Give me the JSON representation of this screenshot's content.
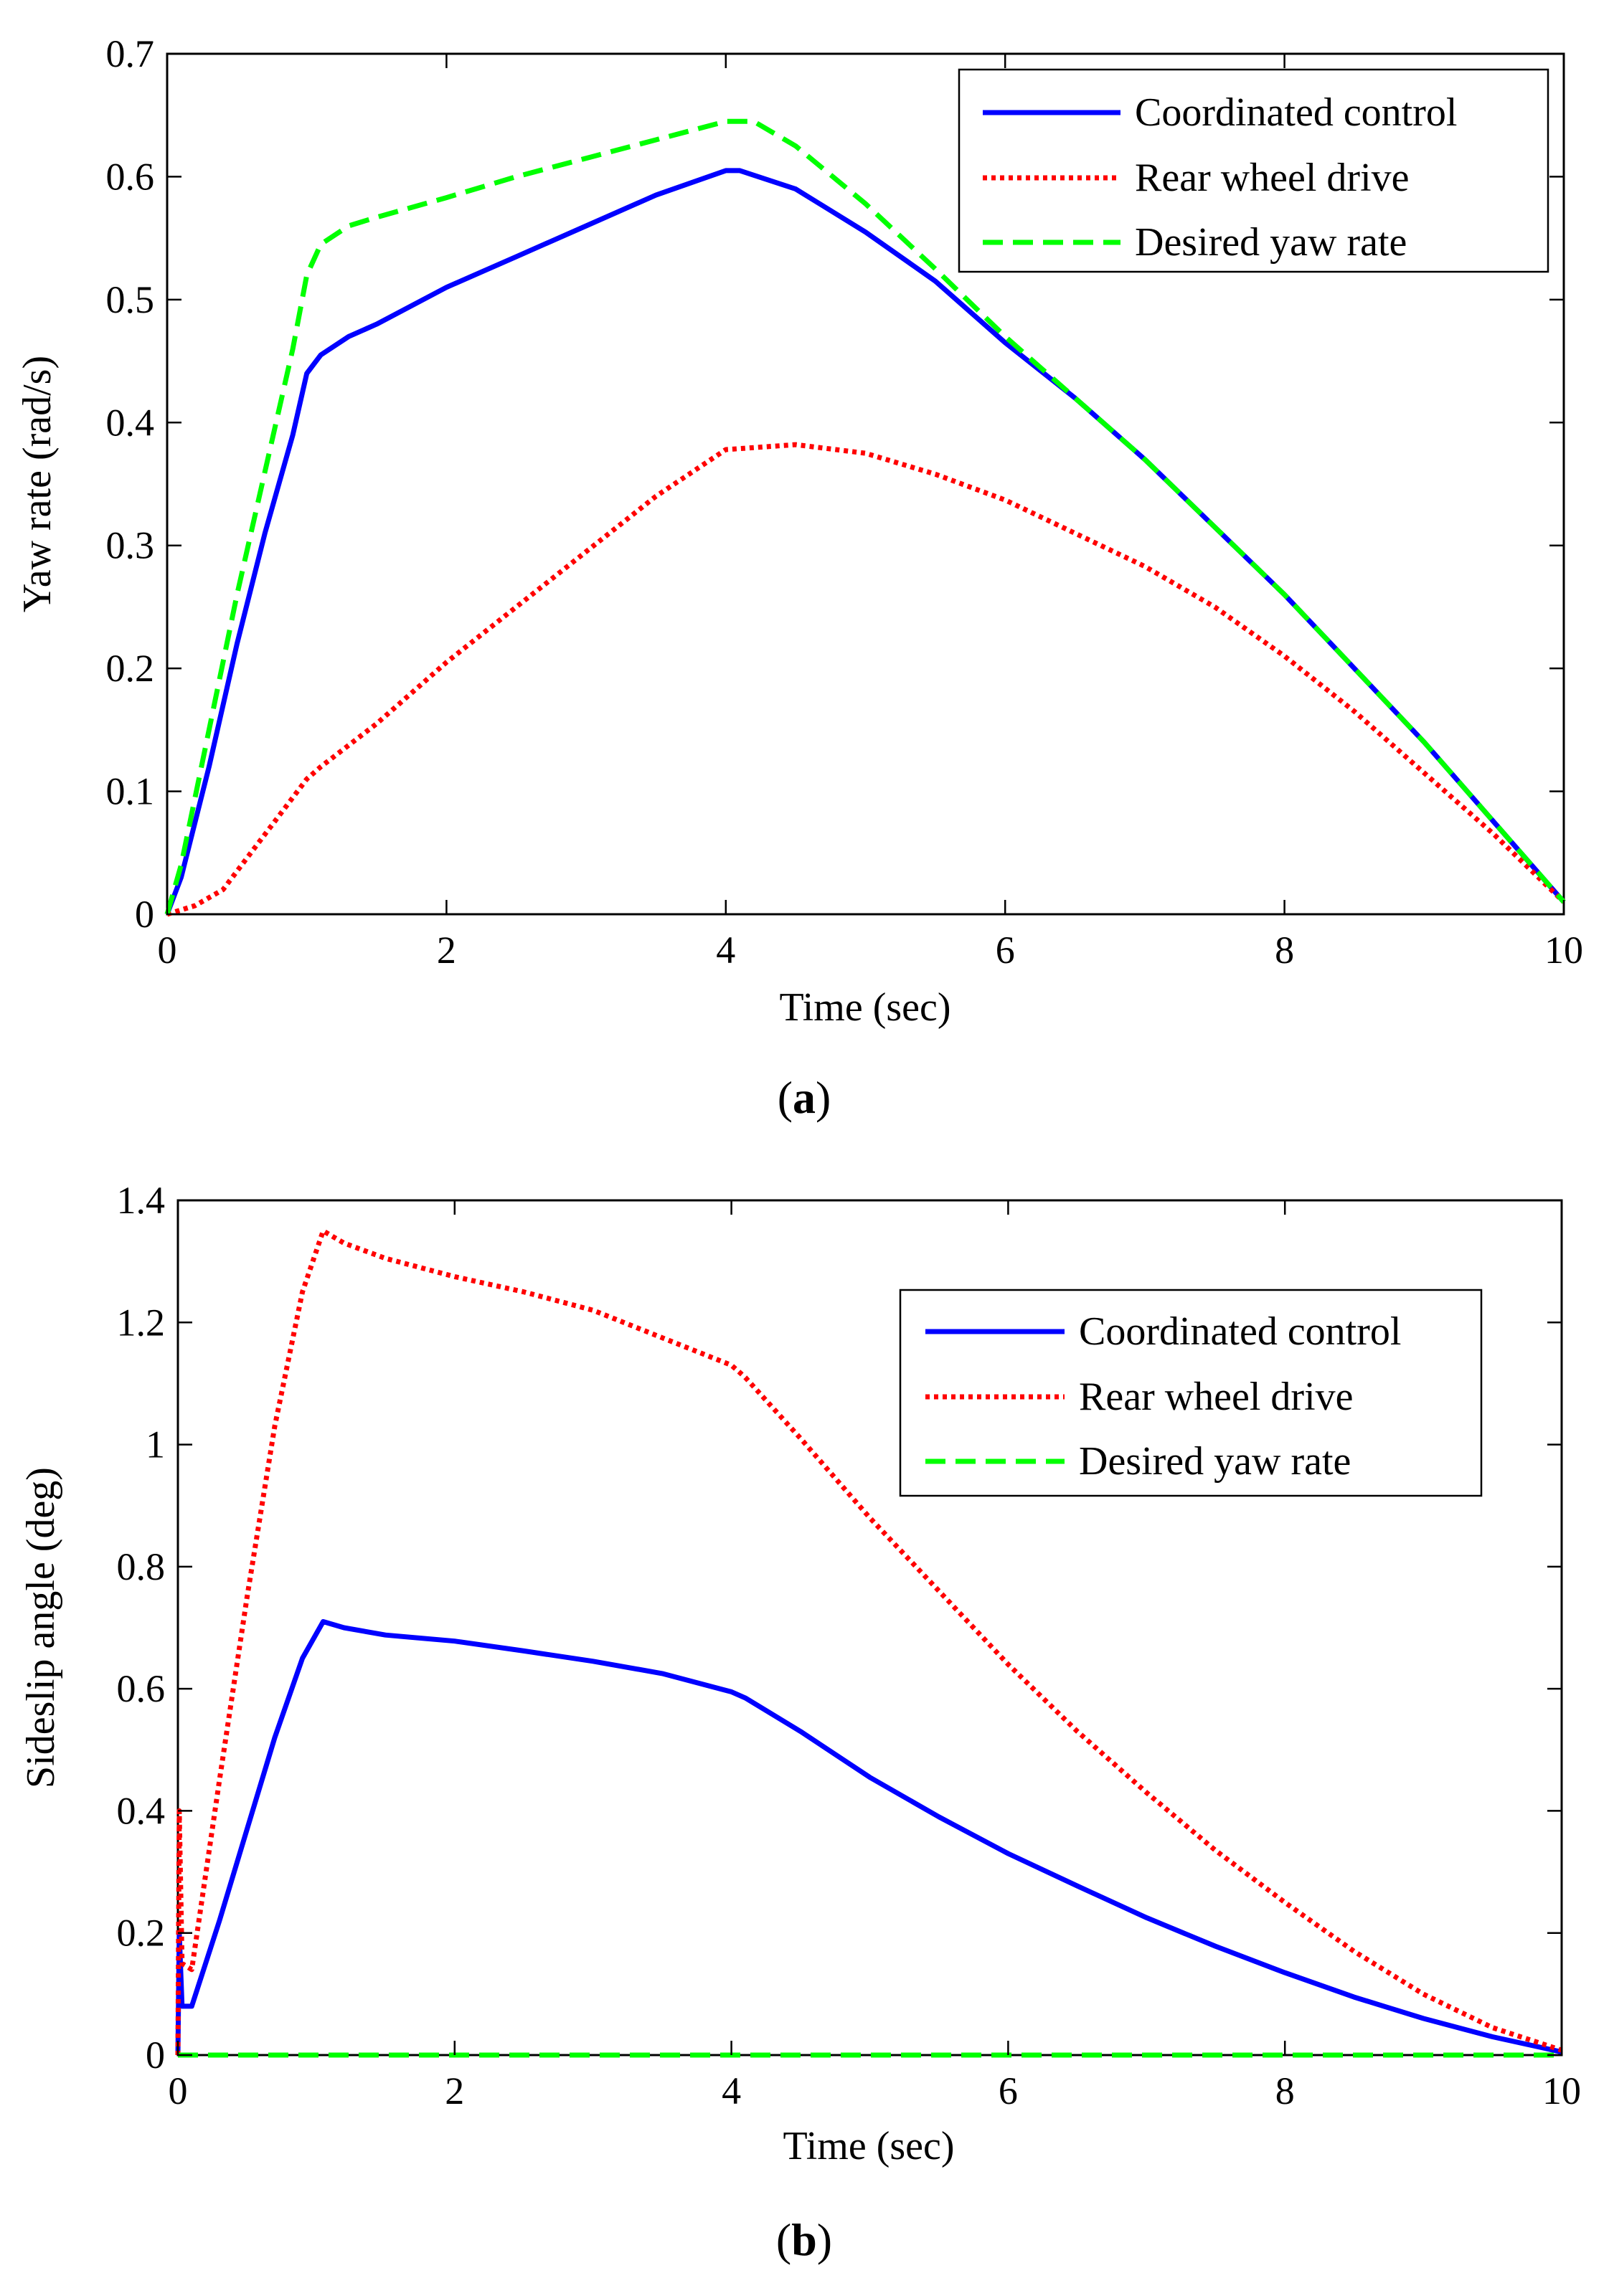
{
  "figure": {
    "caption_a": "a",
    "caption_b": "b",
    "colors": {
      "coordinated": "#0000ff",
      "rear": "#ff0000",
      "desired": "#00ff00",
      "axes": "#000000",
      "legend_border": "#000000"
    }
  },
  "chart_data": [
    {
      "type": "line",
      "id": "a",
      "title": "",
      "xlabel": "Time (sec)",
      "ylabel": "Yaw rate (rad/s)",
      "xlim": [
        0,
        10
      ],
      "ylim": [
        0,
        0.7
      ],
      "xticks": [
        0,
        2,
        4,
        6,
        8,
        10
      ],
      "yticks": [
        0,
        0.1,
        0.2,
        0.3,
        0.4,
        0.5,
        0.6,
        0.7
      ],
      "xtick_labels": [
        "0",
        "2",
        "4",
        "6",
        "8",
        "10"
      ],
      "ytick_labels": [
        "0",
        "0.1",
        "0.2",
        "0.3",
        "0.4",
        "0.5",
        "0.6",
        "0.7"
      ],
      "grid": false,
      "legend_position": "top-right",
      "series": [
        {
          "name": "Coordinated control",
          "style": "solid",
          "x": [
            0,
            0.1,
            0.3,
            0.5,
            0.7,
            0.9,
            1.0,
            1.1,
            1.3,
            1.5,
            2.0,
            2.5,
            3.0,
            3.5,
            4.0,
            4.1,
            4.5,
            5.0,
            5.5,
            6.0,
            6.5,
            7.0,
            7.5,
            8.0,
            8.5,
            9.0,
            9.5,
            10.0
          ],
          "y": [
            0.0,
            0.03,
            0.12,
            0.22,
            0.31,
            0.39,
            0.44,
            0.455,
            0.47,
            0.48,
            0.51,
            0.535,
            0.56,
            0.585,
            0.605,
            0.605,
            0.59,
            0.555,
            0.515,
            0.465,
            0.42,
            0.37,
            0.315,
            0.26,
            0.2,
            0.14,
            0.075,
            0.01
          ]
        },
        {
          "name": "Rear wheel drive",
          "style": "dotted",
          "x": [
            0,
            0.2,
            0.4,
            0.6,
            0.8,
            1.0,
            1.1,
            1.5,
            2.0,
            2.5,
            3.0,
            3.5,
            4.0,
            4.5,
            5.0,
            5.5,
            6.0,
            6.5,
            7.0,
            7.5,
            8.0,
            8.5,
            9.0,
            9.5,
            10.0
          ],
          "y": [
            0.0,
            0.007,
            0.02,
            0.05,
            0.08,
            0.11,
            0.12,
            0.155,
            0.205,
            0.25,
            0.295,
            0.34,
            0.378,
            0.382,
            0.375,
            0.358,
            0.337,
            0.31,
            0.283,
            0.25,
            0.21,
            0.165,
            0.115,
            0.065,
            0.01
          ]
        },
        {
          "name": "Desired yaw rate",
          "style": "dashed",
          "x": [
            0,
            0.1,
            0.3,
            0.5,
            0.7,
            0.9,
            1.0,
            1.1,
            1.3,
            1.5,
            2.0,
            2.5,
            3.0,
            3.5,
            4.0,
            4.2,
            4.5,
            5.0,
            5.5,
            6.0,
            6.5,
            7.0,
            7.5,
            8.0,
            8.5,
            9.0,
            9.5,
            10.0
          ],
          "y": [
            0.0,
            0.04,
            0.15,
            0.26,
            0.36,
            0.46,
            0.52,
            0.545,
            0.56,
            0.567,
            0.583,
            0.6,
            0.615,
            0.63,
            0.645,
            0.645,
            0.625,
            0.578,
            0.525,
            0.47,
            0.42,
            0.37,
            0.315,
            0.26,
            0.2,
            0.14,
            0.075,
            0.01
          ]
        }
      ]
    },
    {
      "type": "line",
      "id": "b",
      "title": "",
      "xlabel": "Time (sec)",
      "ylabel": "Sideslip angle (deg)",
      "xlim": [
        0,
        10
      ],
      "ylim": [
        0,
        1.4
      ],
      "xticks": [
        0,
        2,
        4,
        6,
        8,
        10
      ],
      "yticks": [
        0,
        0.2,
        0.4,
        0.6,
        0.8,
        1.0,
        1.2,
        1.4
      ],
      "xtick_labels": [
        "0",
        "2",
        "4",
        "6",
        "8",
        "10"
      ],
      "ytick_labels": [
        "0",
        "0.2",
        "0.4",
        "0.6",
        "0.8",
        "1",
        "1.2",
        "1.4"
      ],
      "grid": false,
      "legend_position": "top-right",
      "series": [
        {
          "name": "Coordinated control",
          "style": "solid",
          "x": [
            0,
            0.01,
            0.03,
            0.1,
            0.3,
            0.5,
            0.7,
            0.9,
            1.05,
            1.2,
            1.5,
            2.0,
            2.5,
            3.0,
            3.5,
            4.0,
            4.1,
            4.5,
            5.0,
            5.5,
            6.0,
            6.5,
            7.0,
            7.5,
            8.0,
            8.5,
            9.0,
            9.5,
            10.0
          ],
          "y": [
            0.0,
            0.2,
            0.08,
            0.08,
            0.22,
            0.37,
            0.52,
            0.65,
            0.71,
            0.7,
            0.688,
            0.678,
            0.662,
            0.645,
            0.625,
            0.595,
            0.585,
            0.53,
            0.455,
            0.39,
            0.33,
            0.277,
            0.225,
            0.178,
            0.135,
            0.095,
            0.06,
            0.03,
            0.005
          ]
        },
        {
          "name": "Rear wheel drive",
          "style": "dotted",
          "x": [
            0,
            0.01,
            0.03,
            0.1,
            0.3,
            0.5,
            0.7,
            0.9,
            1.05,
            1.2,
            1.5,
            2.0,
            2.5,
            3.0,
            3.5,
            4.0,
            4.1,
            4.5,
            5.0,
            5.5,
            6.0,
            6.5,
            7.0,
            7.5,
            8.0,
            8.5,
            9.0,
            9.5,
            10.0
          ],
          "y": [
            0.0,
            0.4,
            0.15,
            0.14,
            0.45,
            0.75,
            1.03,
            1.25,
            1.35,
            1.33,
            1.305,
            1.275,
            1.25,
            1.22,
            1.175,
            1.13,
            1.11,
            1.01,
            0.88,
            0.76,
            0.64,
            0.53,
            0.43,
            0.335,
            0.25,
            0.17,
            0.1,
            0.045,
            0.008
          ]
        },
        {
          "name": "Desired yaw rate",
          "style": "dashed",
          "x": [
            0,
            10
          ],
          "y": [
            0.0,
            0.0
          ]
        }
      ]
    }
  ]
}
